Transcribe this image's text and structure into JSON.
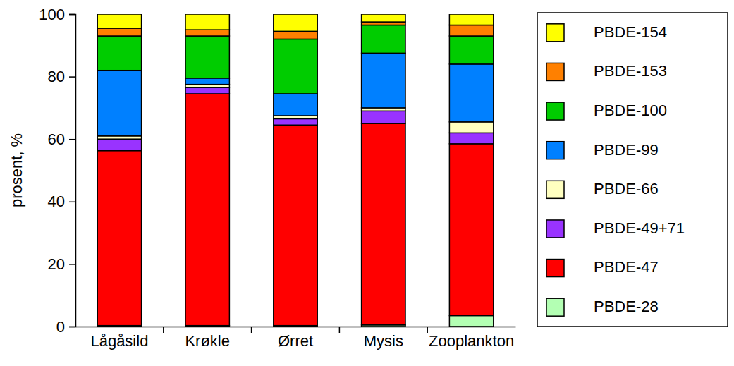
{
  "chart_data": {
    "type": "bar",
    "stacked": true,
    "legend": "right",
    "y_label": "prosent, %",
    "categories": [
      "Lågåsild",
      "Krøkle",
      "Ørret",
      "Mysis",
      "Zooplankton"
    ],
    "ylim": [
      0,
      100
    ],
    "yticks": [
      0,
      20,
      40,
      60,
      80,
      100
    ],
    "series": [
      {
        "name": "PBDE-28",
        "color": "#b3ffb3",
        "values": [
          0.3,
          0.3,
          0.3,
          0.5,
          3.5
        ]
      },
      {
        "name": "PBDE-47",
        "color": "#ff0000",
        "values": [
          56.0,
          74.2,
          64.2,
          64.5,
          55.0
        ]
      },
      {
        "name": "PBDE-49+71",
        "color": "#9933ff",
        "values": [
          3.7,
          2.0,
          2.0,
          4.0,
          3.5
        ]
      },
      {
        "name": "PBDE-66",
        "color": "#ffffc0",
        "values": [
          1.0,
          1.0,
          1.0,
          1.0,
          3.5
        ]
      },
      {
        "name": "PBDE-99",
        "color": "#0080ff",
        "values": [
          21.0,
          2.0,
          7.0,
          17.5,
          18.5
        ]
      },
      {
        "name": "PBDE-100",
        "color": "#00cc00",
        "values": [
          11.0,
          13.5,
          17.5,
          9.0,
          9.0
        ]
      },
      {
        "name": "PBDE-153",
        "color": "#ff8000",
        "values": [
          2.5,
          2.0,
          2.5,
          1.0,
          3.5
        ]
      },
      {
        "name": "PBDE-154",
        "color": "#ffff00",
        "values": [
          4.5,
          5.0,
          5.5,
          2.5,
          3.5
        ]
      }
    ]
  }
}
